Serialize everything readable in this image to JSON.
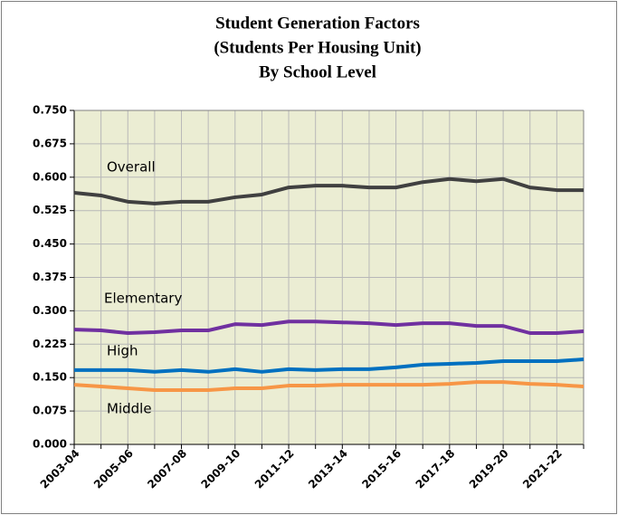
{
  "chart_data": {
    "type": "line",
    "title": [
      "Student Generation Factors",
      "(Students Per Housing Unit)",
      "By School Level"
    ],
    "categories": [
      "2003-04",
      null,
      "2005-06",
      null,
      "2007-08",
      null,
      "2009-10",
      null,
      "2011-12",
      null,
      "2013-14",
      null,
      "2015-16",
      null,
      "2017-18",
      null,
      "2019-20",
      null,
      "2021-22",
      null
    ],
    "series": [
      {
        "name": "Overall",
        "color": "#404040",
        "values": [
          0.565,
          0.559,
          0.545,
          0.541,
          0.545,
          0.545,
          0.555,
          0.561,
          0.577,
          0.581,
          0.581,
          0.577,
          0.577,
          0.589,
          0.596,
          0.591,
          0.596,
          0.577,
          0.571,
          0.571
        ]
      },
      {
        "name": "Elementary",
        "color": "#7030a0",
        "values": [
          0.258,
          0.256,
          0.25,
          0.252,
          0.256,
          0.256,
          0.27,
          0.268,
          0.276,
          0.276,
          0.274,
          0.272,
          0.268,
          0.272,
          0.272,
          0.266,
          0.266,
          0.25,
          0.25,
          0.254
        ]
      },
      {
        "name": "High",
        "color": "#0070c0",
        "values": [
          0.167,
          0.167,
          0.167,
          0.163,
          0.167,
          0.163,
          0.169,
          0.163,
          0.169,
          0.167,
          0.169,
          0.169,
          0.173,
          0.179,
          0.181,
          0.183,
          0.187,
          0.187,
          0.187,
          0.191
        ]
      },
      {
        "name": "Middle",
        "color": "#f79646",
        "values": [
          0.134,
          0.13,
          0.126,
          0.122,
          0.122,
          0.122,
          0.126,
          0.126,
          0.132,
          0.132,
          0.134,
          0.134,
          0.134,
          0.134,
          0.136,
          0.14,
          0.14,
          0.136,
          0.134,
          0.13
        ]
      }
    ],
    "ylim": [
      0,
      0.75
    ],
    "yticks": [
      {
        "value": 0,
        "label": "0.000"
      },
      0.075,
      {
        "value": 0.15,
        "label": "0.150"
      },
      0.225,
      {
        "value": 0.3,
        "label": "0.300"
      },
      0.375,
      {
        "value": 0.45,
        "label": "0.450"
      },
      0.525,
      {
        "value": 0.6,
        "label": "0.600"
      },
      0.675,
      {
        "value": 0.75,
        "label": "0.750"
      }
    ],
    "grid": true
  }
}
